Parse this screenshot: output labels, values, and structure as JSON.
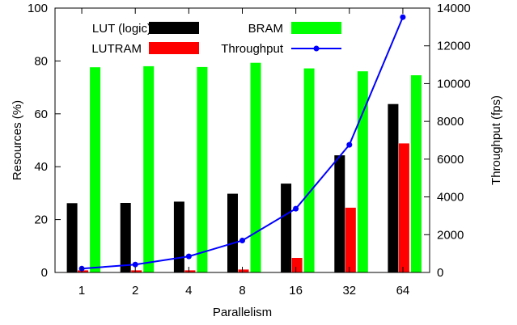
{
  "chart_data": {
    "type": "bar",
    "title": "",
    "xlabel": "Parallelism",
    "ylabel": "Resources (%)",
    "y2label": "Throughput (fps)",
    "categories": [
      "1",
      "2",
      "4",
      "8",
      "16",
      "32",
      "64"
    ],
    "ylim": [
      0,
      100
    ],
    "y2lim": [
      0,
      14000
    ],
    "yticks": [
      "0",
      "20",
      "40",
      "60",
      "80",
      "100"
    ],
    "y2ticks": [
      "0",
      "2000",
      "4000",
      "6000",
      "8000",
      "10000",
      "12000",
      "14000"
    ],
    "grid": false,
    "legend_position": "top-left",
    "series": [
      {
        "name": "LUT (logic)",
        "kind": "bar",
        "axis": "left",
        "color": "#000000",
        "values": [
          26.2,
          26.3,
          26.8,
          29.8,
          33.6,
          44.3,
          63.7
        ]
      },
      {
        "name": "LUTRAM",
        "kind": "bar",
        "axis": "left",
        "color": "#ff0000",
        "values": [
          0.8,
          0.8,
          0.8,
          1.1,
          5.5,
          24.5,
          48.8
        ]
      },
      {
        "name": "BRAM",
        "kind": "bar",
        "axis": "left",
        "color": "#00ff00",
        "values": [
          77.6,
          78.0,
          77.7,
          79.3,
          77.2,
          76.1,
          74.6
        ]
      },
      {
        "name": "Throughput",
        "kind": "line",
        "axis": "right",
        "color": "#0000ff",
        "values": [
          200,
          420,
          850,
          1690,
          3380,
          6760,
          13520
        ]
      }
    ]
  }
}
